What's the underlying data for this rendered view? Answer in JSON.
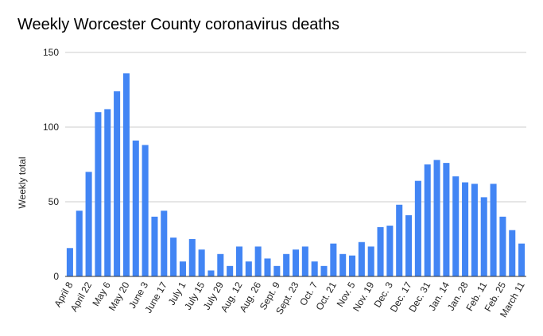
{
  "chart_data": {
    "type": "bar",
    "title": "Weekly Worcester County coronavirus deaths",
    "xlabel": "",
    "ylabel": "Weekly total",
    "ylim": [
      0,
      150
    ],
    "yticks": [
      0,
      50,
      100,
      150
    ],
    "grid": true,
    "legend": "none",
    "bar_color": "#4285F4",
    "categories": [
      "April 8",
      "April 15",
      "April 22",
      "April 29",
      "May 6",
      "May 13",
      "May 20",
      "May 27",
      "June 3",
      "June 10",
      "June 17",
      "June 24",
      "July 1",
      "July 8",
      "July 15",
      "July 22",
      "July 29",
      "Aug. 5",
      "Aug. 12",
      "Aug. 19",
      "Aug. 26",
      "Sept. 2",
      "Sept. 9",
      "Sept. 16",
      "Sept. 23",
      "Sept. 30",
      "Oct. 7",
      "Oct. 14",
      "Oct. 21",
      "Oct. 28",
      "Nov. 5",
      "Nov. 12",
      "Nov. 19",
      "Nov. 26",
      "Dec. 3",
      "Dec. 10",
      "Dec. 17",
      "Dec. 24",
      "Dec. 31",
      "Jan. 7",
      "Jan. 14",
      "Jan. 21",
      "Jan. 28",
      "Feb. 4",
      "Feb. 11",
      "Feb. 18",
      "Feb. 25",
      "March 4",
      "March 11"
    ],
    "visible_tick_labels": [
      "April 8",
      "April 22",
      "May 6",
      "May 20",
      "June 3",
      "June 17",
      "July 1",
      "July 15",
      "July 29",
      "Aug. 12",
      "Aug. 26",
      "Sept. 9",
      "Sept. 23",
      "Oct. 7",
      "Oct. 21",
      "Nov. 5",
      "Nov. 19",
      "Dec. 3",
      "Dec. 17",
      "Dec. 31",
      "Jan. 14",
      "Jan. 28",
      "Feb. 11",
      "Feb. 25",
      "March 11"
    ],
    "values": [
      19,
      44,
      70,
      110,
      112,
      124,
      136,
      91,
      88,
      40,
      44,
      26,
      10,
      25,
      18,
      4,
      15,
      7,
      20,
      10,
      20,
      12,
      7,
      15,
      18,
      20,
      10,
      7,
      22,
      15,
      14,
      23,
      20,
      33,
      34,
      48,
      41,
      64,
      75,
      78,
      76,
      67,
      63,
      62,
      53,
      62,
      40,
      31,
      22
    ]
  }
}
